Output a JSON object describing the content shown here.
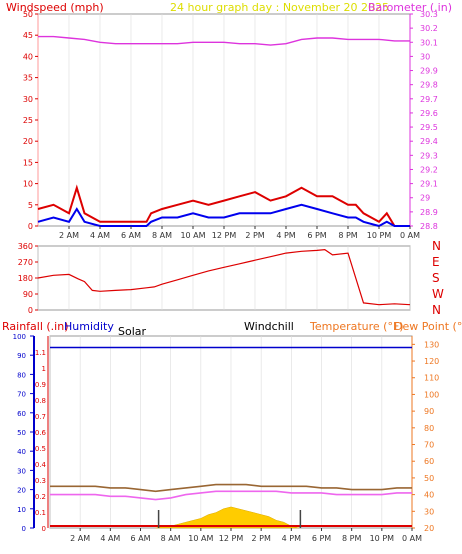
{
  "header": {
    "windspeed_label": "Windspeed (mph)",
    "title": "24 hour graph day : November 20 2025",
    "barometer_label": "Barometer (.in)"
  },
  "lower_header": {
    "rainfall_label": "Rainfall (.in)",
    "humidity_label": "Humidity",
    "solar_label": "Solar",
    "windchill_label": "Windchill",
    "temperature_label": "Temperature (°F)",
    "dewpoint_label": "Dew Point (°F)"
  },
  "colors": {
    "windspeed": "#dd0000",
    "windgust": "#ff2222",
    "windavg": "#0000ee",
    "barometer": "#dd33dd",
    "title": "#dddd00",
    "direction": "#dd0000",
    "rainfall": "#dd0000",
    "humidity": "#0000cc",
    "temperature": "#996633",
    "dewpoint": "#ee66ee",
    "solar": "#ffcc00",
    "windchill": "#000000",
    "temp_axis": "#ee7722",
    "grid": "#dddddd"
  },
  "chart_data": [
    {
      "type": "line",
      "name": "wind",
      "x_ticks": [
        "2 AM",
        "4 AM",
        "6 AM",
        "8 AM",
        "10 AM",
        "12 PM",
        "2 PM",
        "4 PM",
        "6 PM",
        "8 PM",
        "10 PM",
        "0 AM"
      ],
      "y_left_ticks": [
        "0",
        "5",
        "10",
        "15",
        "20",
        "25",
        "30",
        "35",
        "40",
        "45",
        "50"
      ],
      "y_right_ticks": [
        "28.8",
        "28.9",
        "29",
        "29.1",
        "29.2",
        "29.3",
        "29.4",
        "29.5",
        "29.6",
        "29.7",
        "29.8",
        "29.9",
        "30",
        "30.1",
        "30.2",
        "30.3"
      ],
      "ylim_left": [
        0,
        50
      ],
      "ylim_right": [
        28.8,
        30.3
      ],
      "barometer": {
        "x": [
          0,
          1,
          2,
          3,
          4,
          5,
          6,
          7,
          8,
          9,
          10,
          11,
          12,
          13,
          14,
          15,
          16,
          17,
          18,
          19,
          20,
          21,
          22,
          23,
          24
        ],
        "y": [
          30.14,
          30.14,
          30.13,
          30.12,
          30.1,
          30.09,
          30.09,
          30.09,
          30.09,
          30.09,
          30.1,
          30.1,
          30.1,
          30.09,
          30.09,
          30.08,
          30.09,
          30.12,
          30.13,
          30.13,
          30.12,
          30.12,
          30.12,
          30.11,
          30.11
        ]
      },
      "windspeed_max": {
        "x": [
          0,
          1,
          2,
          2.5,
          3,
          4,
          5,
          6,
          7,
          7.3,
          8,
          9,
          10,
          11,
          12,
          13,
          14,
          15,
          16,
          17,
          18,
          19,
          20,
          20.5,
          21,
          22,
          22.5,
          23,
          24
        ],
        "y": [
          4,
          5,
          3,
          9,
          3,
          1,
          1,
          1,
          1,
          3,
          4,
          5,
          6,
          5,
          6,
          7,
          8,
          6,
          7,
          9,
          7,
          7,
          5,
          5,
          3,
          1,
          3,
          0,
          0
        ]
      },
      "windspeed_avg": {
        "x": [
          0,
          1,
          2,
          2.5,
          3,
          4,
          5,
          6,
          7,
          7.3,
          8,
          9,
          10,
          11,
          12,
          13,
          14,
          15,
          16,
          17,
          18,
          19,
          20,
          20.5,
          21,
          22,
          22.5,
          23,
          24
        ],
        "y": [
          1,
          2,
          1,
          4,
          1,
          0,
          0,
          0,
          0,
          1,
          2,
          2,
          3,
          2,
          2,
          3,
          3,
          3,
          4,
          5,
          4,
          3,
          2,
          2,
          1,
          0,
          1,
          0,
          0
        ]
      }
    },
    {
      "type": "line",
      "name": "wind_direction",
      "y_left_ticks": [
        "0",
        "90",
        "180",
        "270",
        "360"
      ],
      "y_right_ticks": [
        "N",
        "E",
        "S",
        "W",
        "N"
      ],
      "ylim": [
        0,
        360
      ],
      "x": [
        0,
        1,
        2,
        2.6,
        3,
        3.5,
        4,
        5,
        6,
        7,
        7.5,
        8,
        9,
        10,
        11,
        12,
        13,
        13.5,
        14,
        15,
        16,
        17,
        18,
        18.5,
        19,
        20,
        21,
        22,
        23,
        24
      ],
      "y": [
        180,
        195,
        200,
        175,
        160,
        110,
        105,
        110,
        115,
        125,
        130,
        145,
        170,
        195,
        220,
        240,
        260,
        270,
        280,
        300,
        320,
        330,
        335,
        340,
        310,
        320,
        40,
        30,
        35,
        30
      ]
    },
    {
      "type": "line",
      "name": "temperature_humidity_rain_solar",
      "y_left_ticks": [
        "0",
        "10",
        "20",
        "30",
        "40",
        "50",
        "60",
        "70",
        "80",
        "90",
        "100"
      ],
      "y_rain_ticks": [
        "0",
        "0.1",
        "0.2",
        "0.3",
        "0.4",
        "0.5",
        "0.6",
        "0.7",
        "0.8",
        "0.9",
        "1",
        "1.1"
      ],
      "y_right_ticks": [
        "20",
        "30",
        "40",
        "50",
        "60",
        "70",
        "80",
        "90",
        "100",
        "110",
        "120",
        "130"
      ],
      "ylim_left": [
        0,
        100
      ],
      "ylim_right": [
        20,
        135
      ],
      "humidity": {
        "x": [
          0,
          24
        ],
        "y": [
          94,
          94
        ]
      },
      "temperature": {
        "x": [
          0,
          1,
          2,
          3,
          4,
          5,
          6,
          7,
          8,
          9,
          10,
          11,
          12,
          13,
          14,
          15,
          16,
          17,
          18,
          19,
          20,
          21,
          22,
          23,
          24
        ],
        "y": [
          45,
          45,
          45,
          45,
          44,
          44,
          43,
          42,
          43,
          44,
          45,
          46,
          46,
          46,
          45,
          45,
          45,
          45,
          44,
          44,
          43,
          43,
          43,
          44,
          44
        ]
      },
      "dewpoint": {
        "x": [
          0,
          1,
          2,
          3,
          4,
          5,
          6,
          7,
          8,
          9,
          10,
          11,
          12,
          13,
          14,
          15,
          16,
          17,
          18,
          19,
          20,
          21,
          22,
          23,
          24
        ],
        "y": [
          40,
          40,
          40,
          40,
          39,
          39,
          38,
          37,
          38,
          40,
          41,
          42,
          42,
          42,
          42,
          42,
          41,
          41,
          41,
          40,
          40,
          40,
          40,
          41,
          41
        ]
      },
      "solar": {
        "x": [
          7,
          7.5,
          8,
          8.5,
          9,
          9.5,
          10,
          10.5,
          11,
          11.5,
          12,
          12.5,
          13,
          13.5,
          14,
          14.5,
          15,
          15.5,
          16,
          16.5
        ],
        "y": [
          0,
          1,
          1,
          2,
          3,
          4,
          5,
          7,
          8,
          10,
          11,
          10,
          9,
          8,
          7,
          6,
          4,
          3,
          1,
          0
        ]
      },
      "rainfall": {
        "x": [
          0,
          24
        ],
        "y": [
          0,
          0
        ]
      },
      "markers": {
        "x": [
          7.2,
          16.6
        ]
      }
    }
  ]
}
